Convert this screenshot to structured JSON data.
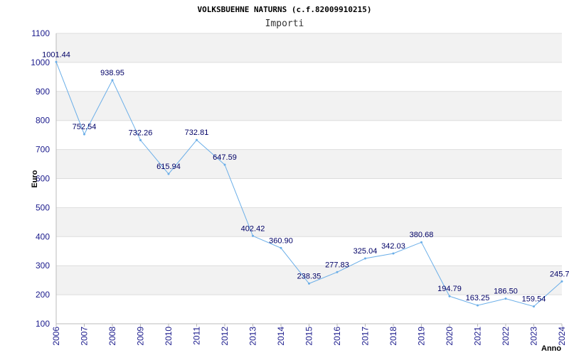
{
  "chart_data": {
    "type": "line",
    "title": "VOLKSBUEHNE NATURNS (c.f.82009910215)",
    "subtitle": "Importi",
    "xlabel": "Anno",
    "ylabel": "Euro",
    "ylim": [
      100,
      1100
    ],
    "yticks": [
      "100",
      "200",
      "300",
      "400",
      "500",
      "600",
      "700",
      "800",
      "900",
      "1000",
      "1100"
    ],
    "categories": [
      "2006",
      "2007",
      "2008",
      "2009",
      "2010",
      "2011",
      "2012",
      "2013",
      "2014",
      "2015",
      "2016",
      "2017",
      "2018",
      "2019",
      "2020",
      "2021",
      "2022",
      "2023",
      "2024"
    ],
    "series": [
      {
        "values": [
          1001.44,
          752.54,
          938.95,
          732.26,
          615.94,
          732.81,
          647.59,
          402.42,
          360.9,
          238.35,
          277.83,
          325.04,
          342.03,
          380.68,
          194.79,
          163.25,
          186.5,
          159.54,
          245.7
        ],
        "labels": [
          "1001.44",
          "752.54",
          "938.95",
          "732.26",
          "615.94",
          "732.81",
          "647.59",
          "402.42",
          "360.90",
          "238.35",
          "277.83",
          "325.04",
          "342.03",
          "380.68",
          "194.79",
          "163.25",
          "186.50",
          "159.54",
          "245.7"
        ],
        "color": "#6aaee8"
      }
    ],
    "grid": true,
    "band_color": "#f2f2f2",
    "grid_color": "#dddddd"
  }
}
